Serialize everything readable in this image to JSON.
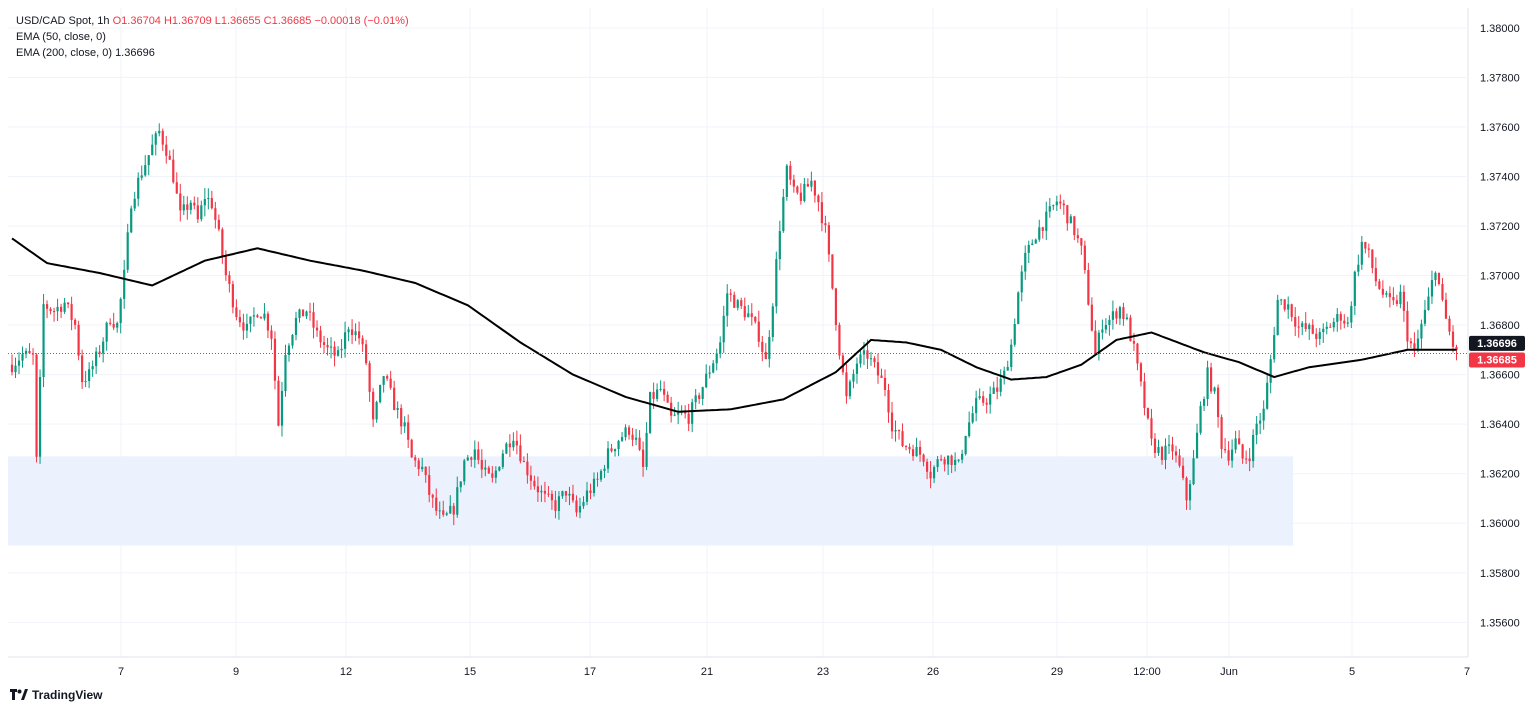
{
  "legend": {
    "symbol": "USD/CAD Spot, 1h",
    "ohlc": "O1.36704  H1.36709  L1.36655  C1.36685  −0.00018 (−0.01%)",
    "ema50": "EMA (50, close, 0)",
    "ema200_label": "EMA (200, close, 0)",
    "ema200_value": "1.36696"
  },
  "brand": {
    "name": "TradingView",
    "icon": "tradingview-logo-icon"
  },
  "colors": {
    "up": "#089981",
    "down": "#f23645",
    "ema": "#000000",
    "zone": "#e8f0fe",
    "grid": "#f0f3fa"
  },
  "price_tags": {
    "ema": "1.36696",
    "last": "1.36685"
  },
  "chart_data": {
    "type": "candlestick",
    "title": "USD/CAD Spot, 1h",
    "ylim": [
      1.3546,
      1.3808
    ],
    "yticks": [
      "1.38000",
      "1.37800",
      "1.37600",
      "1.37400",
      "1.37200",
      "1.37000",
      "1.36800",
      "1.36600",
      "1.36400",
      "1.36200",
      "1.36000",
      "1.35800",
      "1.35600"
    ],
    "xticks": [
      "7",
      "9",
      "12",
      "15",
      "17",
      "21",
      "23",
      "26",
      "29",
      "12:00",
      "Jun",
      "5",
      "7"
    ],
    "last_price": 1.36685,
    "ema_last": 1.36696,
    "zone": {
      "low": 1.3591,
      "high": 1.3627
    },
    "price_path": [
      [
        0,
        1.3664
      ],
      [
        3,
        1.3668
      ],
      [
        6,
        1.3667
      ],
      [
        7,
        1.3625
      ],
      [
        9,
        1.3688
      ],
      [
        12,
        1.3686
      ],
      [
        15,
        1.3689
      ],
      [
        18,
        1.368
      ],
      [
        20,
        1.3658
      ],
      [
        22,
        1.366
      ],
      [
        25,
        1.367
      ],
      [
        28,
        1.3683
      ],
      [
        30,
        1.368
      ],
      [
        32,
        1.37
      ],
      [
        34,
        1.373
      ],
      [
        37,
        1.3742
      ],
      [
        40,
        1.3752
      ],
      [
        42,
        1.3758
      ],
      [
        44,
        1.3751
      ],
      [
        46,
        1.374
      ],
      [
        48,
        1.3724
      ],
      [
        51,
        1.373
      ],
      [
        53,
        1.3722
      ],
      [
        55,
        1.3732
      ],
      [
        57,
        1.3729
      ],
      [
        59,
        1.3716
      ],
      [
        61,
        1.37
      ],
      [
        64,
        1.3685
      ],
      [
        67,
        1.3678
      ],
      [
        70,
        1.3686
      ],
      [
        72,
        1.3684
      ],
      [
        74,
        1.3676
      ],
      [
        76,
        1.364
      ],
      [
        78,
        1.367
      ],
      [
        81,
        1.3682
      ],
      [
        84,
        1.3686
      ],
      [
        87,
        1.3676
      ],
      [
        90,
        1.367
      ],
      [
        93,
        1.3667
      ],
      [
        96,
        1.368
      ],
      [
        99,
        1.3675
      ],
      [
        101,
        1.3665
      ],
      [
        103,
        1.364
      ],
      [
        106,
        1.366
      ],
      [
        109,
        1.3648
      ],
      [
        112,
        1.3638
      ],
      [
        114,
        1.3626
      ],
      [
        117,
        1.3622
      ],
      [
        119,
        1.3612
      ],
      [
        121,
        1.3605
      ],
      [
        123,
        1.3601
      ],
      [
        126,
        1.3606
      ],
      [
        129,
        1.3625
      ],
      [
        132,
        1.363
      ],
      [
        134,
        1.3621
      ],
      [
        137,
        1.3617
      ],
      [
        140,
        1.3629
      ],
      [
        143,
        1.3636
      ],
      [
        146,
        1.3624
      ],
      [
        149,
        1.3616
      ],
      [
        152,
        1.361
      ],
      [
        155,
        1.3607
      ],
      [
        158,
        1.3613
      ],
      [
        161,
        1.3604
      ],
      [
        164,
        1.3612
      ],
      [
        167,
        1.3617
      ],
      [
        170,
        1.3628
      ],
      [
        173,
        1.3634
      ],
      [
        176,
        1.3638
      ],
      [
        178,
        1.3633
      ],
      [
        180,
        1.3622
      ],
      [
        182,
        1.365
      ],
      [
        185,
        1.3654
      ],
      [
        188,
        1.3642
      ],
      [
        191,
        1.3644
      ],
      [
        193,
        1.3643
      ],
      [
        196,
        1.3652
      ],
      [
        199,
        1.3662
      ],
      [
        202,
        1.3673
      ],
      [
        204,
        1.3693
      ],
      [
        207,
        1.3688
      ],
      [
        210,
        1.3684
      ],
      [
        213,
        1.3676
      ],
      [
        215,
        1.3665
      ],
      [
        217,
        1.369
      ],
      [
        219,
        1.372
      ],
      [
        221,
        1.3742
      ],
      [
        223,
        1.3733
      ],
      [
        225,
        1.3732
      ],
      [
        228,
        1.3738
      ],
      [
        230,
        1.373
      ],
      [
        232,
        1.3718
      ],
      [
        234,
        1.3695
      ],
      [
        236,
        1.367
      ],
      [
        238,
        1.365
      ],
      [
        241,
        1.3665
      ],
      [
        244,
        1.3668
      ],
      [
        247,
        1.366
      ],
      [
        249,
        1.3655
      ],
      [
        251,
        1.364
      ],
      [
        254,
        1.3632
      ],
      [
        257,
        1.363
      ],
      [
        260,
        1.3627
      ],
      [
        262,
        1.362
      ],
      [
        265,
        1.3627
      ],
      [
        268,
        1.3626
      ],
      [
        270,
        1.3623
      ],
      [
        272,
        1.3637
      ],
      [
        275,
        1.3648
      ],
      [
        278,
        1.365
      ],
      [
        281,
        1.3654
      ],
      [
        283,
        1.366
      ],
      [
        285,
        1.3672
      ],
      [
        287,
        1.3693
      ],
      [
        289,
        1.3707
      ],
      [
        292,
        1.3717
      ],
      [
        295,
        1.3723
      ],
      [
        298,
        1.373
      ],
      [
        300,
        1.3727
      ],
      [
        303,
        1.3718
      ],
      [
        305,
        1.371
      ],
      [
        307,
        1.369
      ],
      [
        309,
        1.3668
      ],
      [
        311,
        1.3681
      ],
      [
        313,
        1.3682
      ],
      [
        316,
        1.3687
      ],
      [
        318,
        1.3681
      ],
      [
        320,
        1.367
      ],
      [
        322,
        1.3655
      ],
      [
        325,
        1.3632
      ],
      [
        328,
        1.3628
      ],
      [
        331,
        1.363
      ],
      [
        333,
        1.3622
      ],
      [
        335,
        1.361
      ],
      [
        337,
        1.3625
      ],
      [
        339,
        1.3646
      ],
      [
        341,
        1.366
      ],
      [
        343,
        1.3652
      ],
      [
        345,
        1.3632
      ],
      [
        347,
        1.3628
      ],
      [
        349,
        1.3633
      ],
      [
        351,
        1.3626
      ],
      [
        353,
        1.3628
      ],
      [
        355,
        1.364
      ],
      [
        357,
        1.3645
      ],
      [
        359,
        1.3666
      ],
      [
        361,
        1.369
      ],
      [
        364,
        1.3688
      ],
      [
        367,
        1.3679
      ],
      [
        370,
        1.3678
      ],
      [
        373,
        1.3675
      ],
      [
        376,
        1.368
      ],
      [
        379,
        1.3684
      ],
      [
        381,
        1.368
      ],
      [
        383,
        1.37
      ],
      [
        385,
        1.3713
      ],
      [
        387,
        1.3708
      ],
      [
        389,
        1.3698
      ],
      [
        392,
        1.369
      ],
      [
        394,
        1.3688
      ],
      [
        396,
        1.3692
      ],
      [
        398,
        1.3676
      ],
      [
        400,
        1.3668
      ],
      [
        402,
        1.368
      ],
      [
        404,
        1.369
      ],
      [
        406,
        1.3704
      ],
      [
        408,
        1.3688
      ],
      [
        409,
        1.3682
      ],
      [
        411,
        1.3672
      ],
      [
        412,
        1.3668
      ]
    ],
    "ema200_path": [
      [
        0,
        1.3715
      ],
      [
        10,
        1.3705
      ],
      [
        25,
        1.3701
      ],
      [
        40,
        1.3696
      ],
      [
        55,
        1.3706
      ],
      [
        70,
        1.3711
      ],
      [
        85,
        1.3706
      ],
      [
        100,
        1.3702
      ],
      [
        115,
        1.3697
      ],
      [
        130,
        1.3688
      ],
      [
        145,
        1.3673
      ],
      [
        160,
        1.366
      ],
      [
        175,
        1.3651
      ],
      [
        190,
        1.3645
      ],
      [
        205,
        1.3646
      ],
      [
        220,
        1.365
      ],
      [
        235,
        1.3661
      ],
      [
        245,
        1.3674
      ],
      [
        255,
        1.3673
      ],
      [
        265,
        1.367
      ],
      [
        275,
        1.3663
      ],
      [
        285,
        1.3658
      ],
      [
        295,
        1.3659
      ],
      [
        305,
        1.3664
      ],
      [
        315,
        1.3674
      ],
      [
        325,
        1.3677
      ],
      [
        340,
        1.3669
      ],
      [
        350,
        1.3665
      ],
      [
        360,
        1.3659
      ],
      [
        370,
        1.3663
      ],
      [
        385,
        1.3666
      ],
      [
        398,
        1.367
      ],
      [
        412,
        1.367
      ]
    ]
  }
}
